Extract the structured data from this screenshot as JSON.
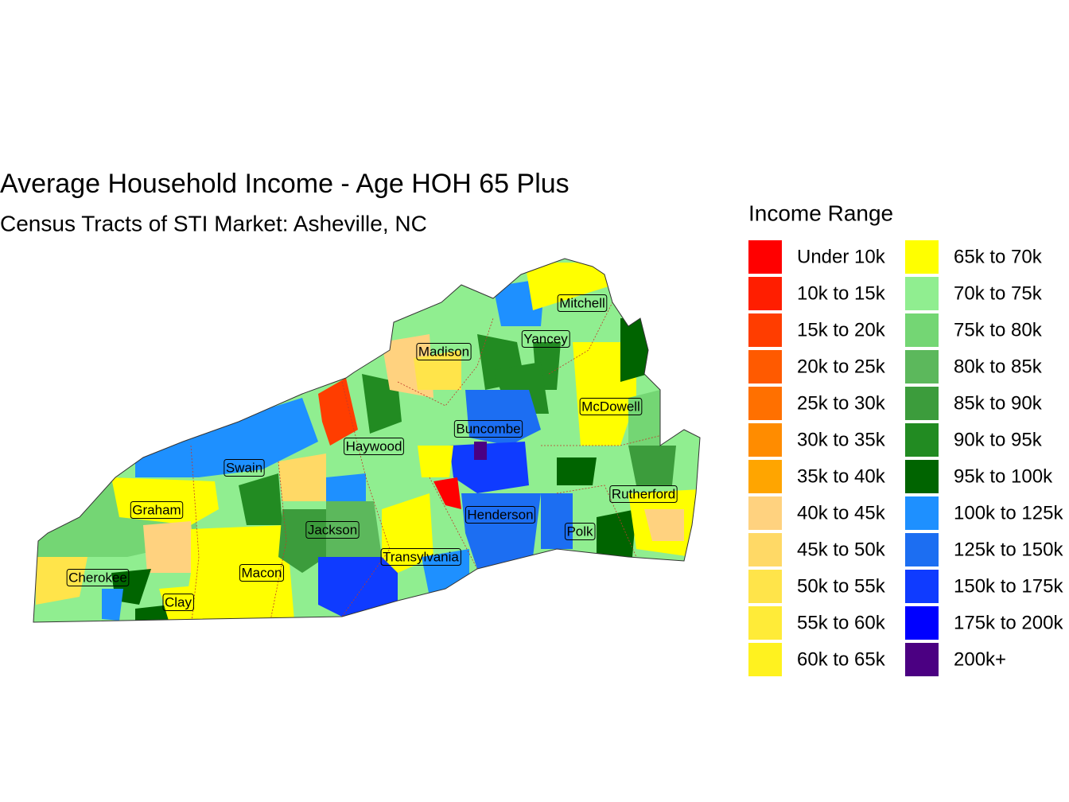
{
  "title": "Average Household Income - Age HOH 65 Plus",
  "subtitle": "Census Tracts of STI Market: Asheville, NC",
  "legend": {
    "title": "Income Range",
    "items": [
      {
        "label": "Under 10k",
        "color": "#ff0000"
      },
      {
        "label": "10k to 15k",
        "color": "#ff1e00"
      },
      {
        "label": "15k to 20k",
        "color": "#ff3d00"
      },
      {
        "label": "20k to 25k",
        "color": "#ff5a00"
      },
      {
        "label": "25k to 30k",
        "color": "#ff7000"
      },
      {
        "label": "30k to 35k",
        "color": "#ff8c00"
      },
      {
        "label": "35k to 40k",
        "color": "#ffa500"
      },
      {
        "label": "40k to 45k",
        "color": "#ffd27f"
      },
      {
        "label": "45k to 50k",
        "color": "#ffd966"
      },
      {
        "label": "50k to 55k",
        "color": "#ffe44a"
      },
      {
        "label": "55k to 60k",
        "color": "#ffeb38"
      },
      {
        "label": "60k to 65k",
        "color": "#fff21f"
      },
      {
        "label": "65k to 70k",
        "color": "#ffff00"
      },
      {
        "label": "70k to 75k",
        "color": "#90ee90"
      },
      {
        "label": "75k to 80k",
        "color": "#74d674"
      },
      {
        "label": "80k to 85k",
        "color": "#5cb85c"
      },
      {
        "label": "85k to 90k",
        "color": "#3c9c3c"
      },
      {
        "label": "90k to 95k",
        "color": "#228b22"
      },
      {
        "label": "95k to 100k",
        "color": "#006400"
      },
      {
        "label": "100k to 125k",
        "color": "#1e90ff"
      },
      {
        "label": "125k to 150k",
        "color": "#1c6ef2"
      },
      {
        "label": "150k to 175k",
        "color": "#0f3bff"
      },
      {
        "label": "175k to 200k",
        "color": "#0000ff"
      },
      {
        "label": "200k+",
        "color": "#4b0082"
      }
    ]
  },
  "counties": [
    "Mitchell",
    "Yancey",
    "Madison",
    "McDowell",
    "Buncombe",
    "Haywood",
    "Swain",
    "Rutherford",
    "Graham",
    "Henderson",
    "Jackson",
    "Polk",
    "Transylvania",
    "Macon",
    "Cherokee",
    "Clay"
  ]
}
